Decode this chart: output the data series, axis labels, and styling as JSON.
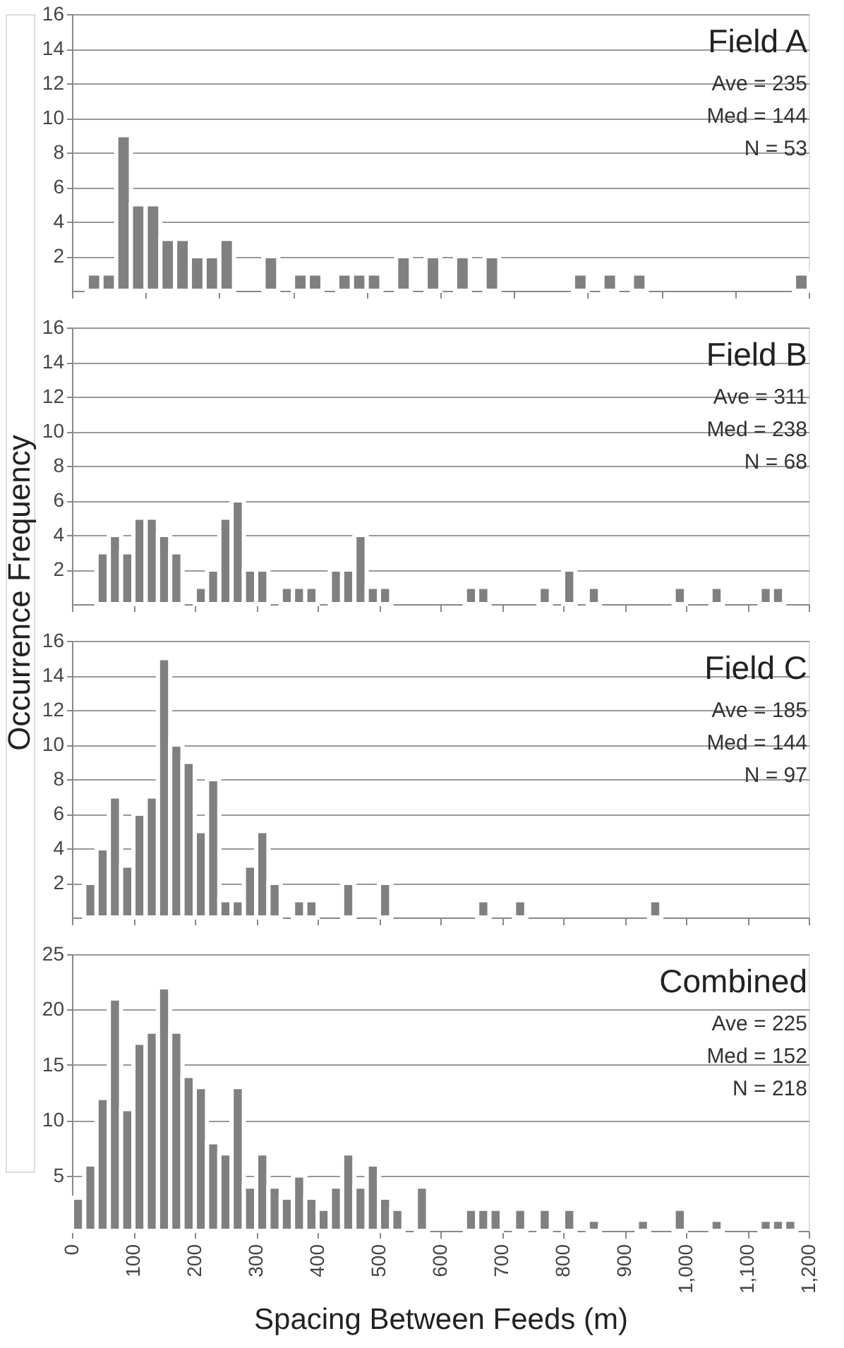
{
  "chart_data": [
    {
      "type": "histogram",
      "title": "Field A",
      "annotations": [
        "Ave = 235",
        "Med = 144",
        "N = 53"
      ],
      "color": "#808080",
      "bins": [
        0,
        24,
        48,
        72,
        96,
        120,
        144,
        168,
        192,
        216,
        240,
        264,
        288,
        312,
        336,
        360,
        384,
        408,
        432,
        456,
        480,
        504,
        528,
        552,
        576,
        600,
        624,
        648,
        672,
        696,
        720,
        744,
        768,
        792,
        816,
        840,
        864,
        888,
        912,
        936,
        960,
        984,
        1008,
        1032,
        1056,
        1080,
        1104,
        1128,
        1152,
        1176,
        1200
      ],
      "values": [
        0,
        1,
        1,
        9,
        5,
        5,
        3,
        3,
        2,
        2,
        3,
        0,
        0,
        2,
        0,
        1,
        1,
        0,
        1,
        1,
        1,
        0,
        2,
        0,
        2,
        0,
        2,
        0,
        2,
        0,
        0,
        0,
        0,
        0,
        1,
        0,
        1,
        0,
        1,
        0,
        0,
        0,
        0,
        0,
        0,
        0,
        0,
        0,
        0,
        1
      ],
      "xlim": [
        0,
        1200
      ],
      "xticks": [
        {
          "value": 0,
          "label": null
        },
        {
          "value": 120,
          "label": null
        },
        {
          "value": 240,
          "label": null
        },
        {
          "value": 360,
          "label": null
        },
        {
          "value": 480,
          "label": null
        },
        {
          "value": 600,
          "label": null
        },
        {
          "value": 720,
          "label": null
        },
        {
          "value": 840,
          "label": null
        },
        {
          "value": 960,
          "label": null
        },
        {
          "value": 1080,
          "label": null
        },
        {
          "value": 1200,
          "label": null
        }
      ],
      "ylim": [
        0,
        16
      ],
      "yticks": [
        2,
        4,
        6,
        8,
        10,
        12,
        14,
        16
      ],
      "grid": "y",
      "tick_labels": "y"
    },
    {
      "type": "histogram",
      "title": "Field B",
      "annotations": [
        "Ave = 311",
        "Med = 238",
        "N = 68"
      ],
      "color": "#808080",
      "ylabel": "Occurrence Frequency",
      "bins": [
        0,
        20,
        40,
        60,
        80,
        100,
        120,
        140,
        160,
        180,
        200,
        220,
        240,
        260,
        280,
        300,
        320,
        340,
        360,
        380,
        400,
        420,
        440,
        460,
        480,
        500,
        520,
        540,
        560,
        580,
        600,
        620,
        640,
        660,
        680,
        700,
        720,
        740,
        760,
        780,
        800,
        820,
        840,
        860,
        880,
        900,
        920,
        940,
        960,
        980,
        1000,
        1020,
        1040,
        1060,
        1080,
        1100,
        1120,
        1140,
        1160,
        1180,
        1200
      ],
      "values": [
        0,
        0,
        3,
        4,
        3,
        5,
        5,
        4,
        3,
        0,
        1,
        2,
        5,
        6,
        2,
        2,
        0,
        1,
        1,
        1,
        0,
        2,
        2,
        4,
        1,
        1,
        0,
        0,
        0,
        0,
        0,
        0,
        1,
        1,
        0,
        0,
        0,
        0,
        1,
        0,
        2,
        0,
        1,
        0,
        0,
        0,
        0,
        0,
        0,
        1,
        0,
        0,
        1,
        0,
        0,
        0,
        1,
        1,
        0,
        0
      ],
      "xlim": [
        0,
        1200
      ],
      "xticks": [
        {
          "value": 0,
          "label": null
        },
        {
          "value": 100,
          "label": null
        },
        {
          "value": 200,
          "label": null
        },
        {
          "value": 300,
          "label": null
        },
        {
          "value": 400,
          "label": null
        },
        {
          "value": 500,
          "label": null
        },
        {
          "value": 600,
          "label": null
        },
        {
          "value": 700,
          "label": null
        },
        {
          "value": 800,
          "label": null
        },
        {
          "value": 900,
          "label": null
        },
        {
          "value": 1000,
          "label": null
        },
        {
          "value": 1100,
          "label": null
        },
        {
          "value": 1200,
          "label": null
        }
      ],
      "ylim": [
        0,
        16
      ],
      "yticks": [
        2,
        4,
        6,
        8,
        10,
        12,
        14,
        16
      ],
      "grid": "y",
      "tick_labels": "y"
    },
    {
      "type": "histogram",
      "title": "Field C",
      "annotations": [
        "Ave = 185",
        "Med = 144",
        "N = 97"
      ],
      "color": "#808080",
      "bins": [
        0,
        20,
        40,
        60,
        80,
        100,
        120,
        140,
        160,
        180,
        200,
        220,
        240,
        260,
        280,
        300,
        320,
        340,
        360,
        380,
        400,
        420,
        440,
        460,
        480,
        500,
        520,
        540,
        560,
        580,
        600,
        620,
        640,
        660,
        680,
        700,
        720,
        740,
        760,
        780,
        800,
        820,
        840,
        860,
        880,
        900,
        920,
        940,
        960,
        980,
        1000,
        1020,
        1040,
        1060,
        1080,
        1100,
        1120,
        1140,
        1160,
        1180,
        1200
      ],
      "values": [
        0,
        2,
        4,
        7,
        3,
        6,
        7,
        15,
        10,
        9,
        5,
        8,
        1,
        1,
        3,
        5,
        2,
        0,
        1,
        1,
        0,
        0,
        2,
        0,
        0,
        2,
        0,
        0,
        0,
        0,
        0,
        0,
        0,
        1,
        0,
        0,
        1,
        0,
        0,
        0,
        0,
        0,
        0,
        0,
        0,
        0,
        0,
        1,
        0,
        0,
        0,
        0,
        0,
        0,
        0,
        0,
        0,
        0,
        0,
        0
      ],
      "xlim": [
        0,
        1200
      ],
      "xticks": [
        {
          "value": 0,
          "label": null
        },
        {
          "value": 100,
          "label": null
        },
        {
          "value": 200,
          "label": null
        },
        {
          "value": 300,
          "label": null
        },
        {
          "value": 400,
          "label": null
        },
        {
          "value": 500,
          "label": null
        },
        {
          "value": 600,
          "label": null
        },
        {
          "value": 700,
          "label": null
        },
        {
          "value": 800,
          "label": null
        },
        {
          "value": 900,
          "label": null
        },
        {
          "value": 1000,
          "label": null
        },
        {
          "value": 1100,
          "label": null
        },
        {
          "value": 1200,
          "label": null
        }
      ],
      "ylim": [
        0,
        16
      ],
      "yticks": [
        2,
        4,
        6,
        8,
        10,
        12,
        14,
        16
      ],
      "grid": "y",
      "tick_labels": "y"
    },
    {
      "type": "histogram",
      "title": "Combined",
      "annotations": [
        "Ave = 225",
        "Med = 152",
        "N = 218"
      ],
      "color": "#808080",
      "xlabel": "Spacing Between Feeds (m)",
      "bins": [
        0,
        20,
        40,
        60,
        80,
        100,
        120,
        140,
        160,
        180,
        200,
        220,
        240,
        260,
        280,
        300,
        320,
        340,
        360,
        380,
        400,
        420,
        440,
        460,
        480,
        500,
        520,
        540,
        560,
        580,
        600,
        620,
        640,
        660,
        680,
        700,
        720,
        740,
        760,
        780,
        800,
        820,
        840,
        860,
        880,
        900,
        920,
        940,
        960,
        980,
        1000,
        1020,
        1040,
        1060,
        1080,
        1100,
        1120,
        1140,
        1160,
        1180,
        1200
      ],
      "values": [
        3,
        6,
        12,
        21,
        11,
        17,
        18,
        22,
        18,
        14,
        13,
        8,
        7,
        13,
        4,
        7,
        4,
        3,
        5,
        3,
        2,
        4,
        7,
        4,
        6,
        3,
        2,
        0,
        4,
        0,
        0,
        0,
        2,
        2,
        2,
        0,
        2,
        0,
        2,
        0,
        2,
        0,
        1,
        0,
        0,
        0,
        1,
        0,
        0,
        2,
        0,
        0,
        1,
        0,
        0,
        0,
        1,
        1,
        1,
        0
      ],
      "xlim": [
        0,
        1200
      ],
      "xticks": [
        0,
        100,
        200,
        300,
        400,
        500,
        600,
        700,
        800,
        900,
        {
          "value": 1000,
          "label": "1,000"
        },
        {
          "value": 1100,
          "label": "1,100"
        },
        {
          "value": 1200,
          "label": "1,200"
        }
      ],
      "ylim": [
        0,
        25
      ],
      "yticks": [
        5,
        10,
        15,
        20,
        25
      ],
      "grid": "y"
    }
  ]
}
